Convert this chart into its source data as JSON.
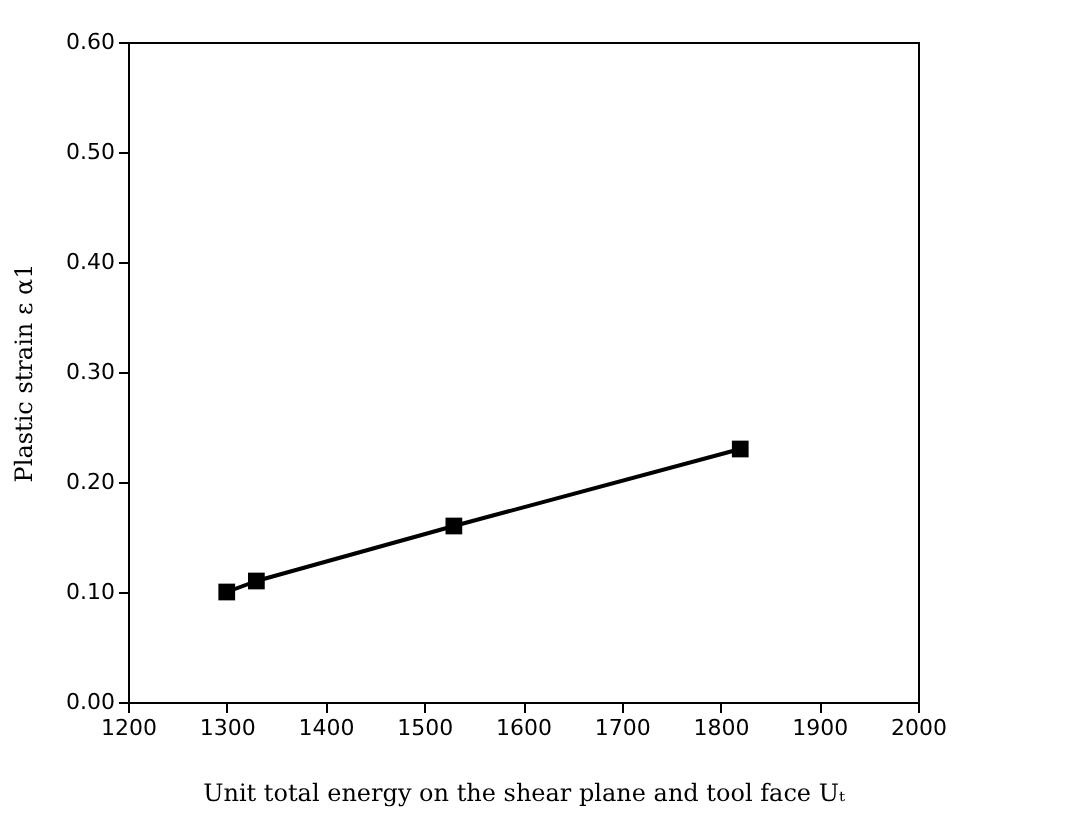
{
  "chart_data": {
    "type": "line",
    "xlabel": "Unit total energy on the shear plane and tool face Uₜ",
    "ylabel": "Plastic strain ε α1",
    "x": [
      1300,
      1330,
      1530,
      1820
    ],
    "series": [
      {
        "color": "#000000",
        "values": [
          0.1,
          0.11,
          0.16,
          0.23
        ]
      }
    ],
    "xlim": [
      1200,
      2000
    ],
    "xticks": [
      1200,
      1300,
      1400,
      1500,
      1600,
      1700,
      1800,
      1900,
      2000
    ],
    "ylim": [
      0,
      0.6
    ],
    "yticks": [
      {
        "value": 0,
        "label": "0.00"
      },
      {
        "value": 0.1,
        "label": "0.10"
      },
      {
        "value": 0.2,
        "label": "0.20"
      },
      {
        "value": 0.3,
        "label": "0.30"
      },
      {
        "value": 0.4,
        "label": "0.40"
      },
      {
        "value": 0.5,
        "label": "0.50"
      },
      {
        "value": 0.6,
        "label": "0.60"
      }
    ],
    "marker": "square",
    "line_style": "solid",
    "grid": false
  }
}
